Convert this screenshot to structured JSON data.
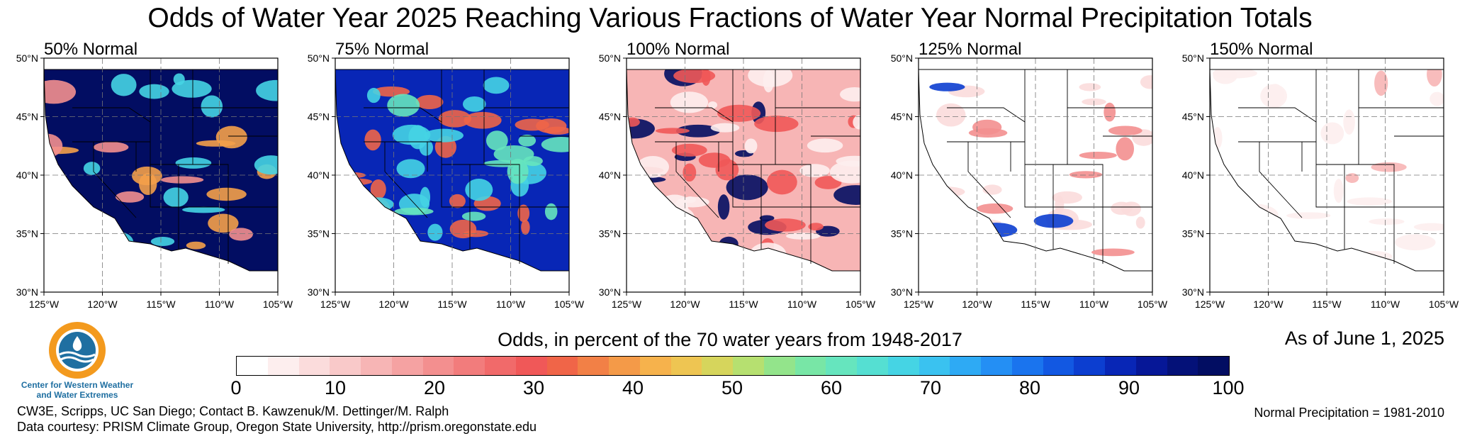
{
  "title": "Odds of Water Year 2025 Reaching Various Fractions of Water Year Normal Precipitation Totals",
  "panels": [
    {
      "label": "50% Normal",
      "level": "very-high"
    },
    {
      "label": "75% Normal",
      "level": "high"
    },
    {
      "label": "100% Normal",
      "level": "medium"
    },
    {
      "label": "125% Normal",
      "level": "low"
    },
    {
      "label": "150% Normal",
      "level": "very-low"
    }
  ],
  "lat_ticks": [
    "50°N",
    "45°N",
    "40°N",
    "35°N",
    "30°N"
  ],
  "lon_ticks": [
    "125°W",
    "120°W",
    "115°W",
    "110°W",
    "105°W"
  ],
  "logo_text": "Center for Western Weather and Water Extremes",
  "colorbar": {
    "title": "Odds, in percent of the 70 water years from 1948-2017",
    "ticks": [
      "0",
      "10",
      "20",
      "30",
      "40",
      "50",
      "60",
      "70",
      "80",
      "90",
      "100"
    ],
    "colors": [
      "#ffffff",
      "#fdeeee",
      "#fbdcdc",
      "#f9c9c9",
      "#f7b5b5",
      "#f5a2a2",
      "#f38f8f",
      "#f27c7c",
      "#f16a6a",
      "#f05858",
      "#f06548",
      "#f28046",
      "#f49a48",
      "#f6b24c",
      "#eec552",
      "#d6d55c",
      "#b6e070",
      "#93e48b",
      "#78e6a6",
      "#66e5be",
      "#55dfd2",
      "#45d4e4",
      "#3ac2f0",
      "#2eaaf4",
      "#248ff4",
      "#1a74ee",
      "#1258e2",
      "#0c3ed0",
      "#0826b6",
      "#061797",
      "#041178",
      "#020d62"
    ]
  },
  "as_of": "As of June 1, 2025",
  "credits": [
    "CW3E, Scripps, UC San Diego; Contact B. Kawzenuk/M. Dettinger/M. Ralph",
    "Data courtesy: PRISM Climate Group, Oregon State University, http://prism.oregonstate.edu"
  ],
  "normal_period": "Normal Precipitation = 1981-2010"
}
